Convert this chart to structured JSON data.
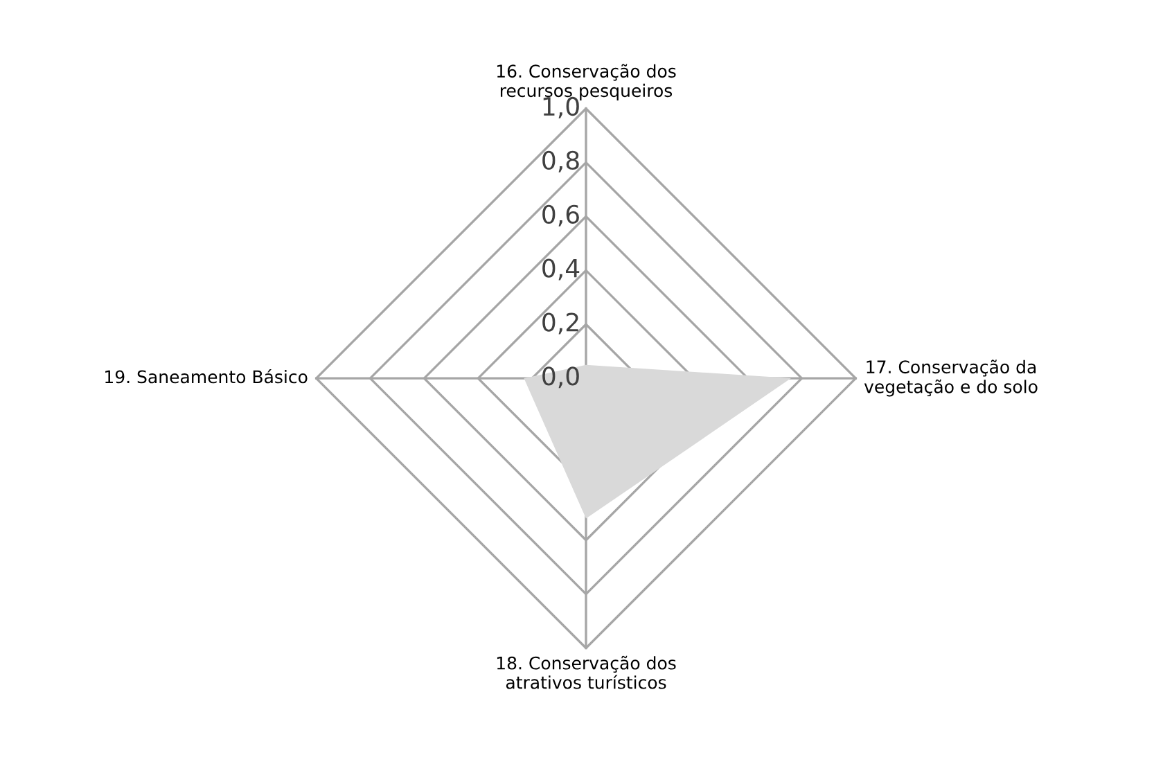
{
  "chart_data": {
    "type": "radar",
    "categories": [
      "16. Conservação dos\nrecursos pesqueiros",
      "17. Conservação da\nvegetação e do solo",
      "18. Conservação dos\natrativos turísticos",
      "19. Saneamento Básico"
    ],
    "series": [
      {
        "color": "#d9d9d9",
        "values": [
          0.05,
          0.76,
          0.52,
          0.23
        ]
      }
    ],
    "ylim": [
      0,
      1
    ],
    "yticks": [
      {
        "value": 0,
        "label": "0,0"
      },
      {
        "value": 0.2,
        "label": "0,2"
      },
      {
        "value": 0.4,
        "label": "0,4"
      },
      {
        "value": 0.6,
        "label": "0,6"
      },
      {
        "value": 0.8,
        "label": "0,8"
      },
      {
        "value": 1,
        "label": "1,0"
      }
    ],
    "grid": true,
    "legend": false
  }
}
